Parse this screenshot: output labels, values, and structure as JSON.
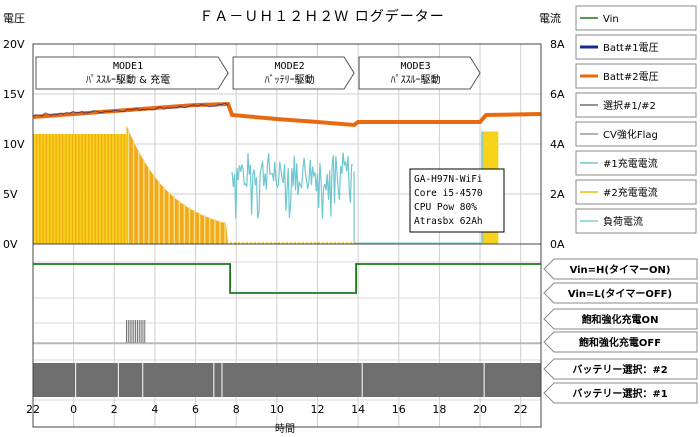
{
  "chart_data": {
    "type": "line",
    "title": "ＦＡ－ＵＨ１２Ｈ２Ｗ ログデーター",
    "ylabel_left": "電圧",
    "ylabel_right": "電流",
    "xlabel": "時間",
    "x_ticks": [
      "22",
      "0",
      "2",
      "4",
      "6",
      "8",
      "10",
      "12",
      "14",
      "16",
      "18",
      "20",
      "22"
    ],
    "y_left_ticks": [
      "20V",
      "15V",
      "10V",
      "5V",
      "0V"
    ],
    "y_right_ticks": [
      "8A",
      "6A",
      "4A",
      "2A",
      "0A"
    ],
    "ylim_left": [
      0,
      20
    ],
    "ylim_right": [
      0,
      8
    ],
    "x_range_hours": [
      22,
      47
    ],
    "modes": [
      {
        "label": "MODE1",
        "sub": "ﾊﾟｽｽﾙｰ駆動 & 充電",
        "x0": 22.0,
        "x1": 31.7
      },
      {
        "label": "MODE2",
        "sub": "ﾊﾞｯﾃﾘｰ駆動",
        "x0": 31.7,
        "x1": 37.9
      },
      {
        "label": "MODE3",
        "sub": "ﾊﾟｽｽﾙｰ駆動",
        "x0": 37.9,
        "x1": 44.1
      }
    ],
    "series": [
      {
        "name": "Vin",
        "color": "#1a7a1a"
      },
      {
        "name": "Batt#1電圧",
        "color": "#1a2a8c"
      },
      {
        "name": "Batt#2電圧",
        "color": "#e86a10"
      },
      {
        "name": "選択#1/#2",
        "color": "#707070"
      },
      {
        "name": "CV強化Flag",
        "color": "#9a9a9a"
      },
      {
        "name": "#1充電電流",
        "color": "#6fc8d0"
      },
      {
        "name": "#2充電電流",
        "color": "#f2c000"
      },
      {
        "name": "負荷電流",
        "color": "#7ad6c8"
      }
    ],
    "batt2_voltage": {
      "x": [
        22.0,
        24,
        26,
        28,
        30,
        31.6,
        31.8,
        34,
        36,
        37.8,
        38.0,
        40,
        42,
        44.0,
        44.3,
        47
      ],
      "y": [
        12.7,
        13.0,
        13.3,
        13.6,
        13.9,
        14.0,
        12.9,
        12.5,
        12.2,
        11.9,
        12.2,
        12.2,
        12.2,
        12.2,
        12.9,
        13.0
      ]
    },
    "digital_rows": [
      {
        "label_high": "Vin=H(タイマーON)",
        "label_low": "Vin=L(タイマーOFF)",
        "color": "#1a7a1a",
        "steps": [
          [
            22.0,
            1
          ],
          [
            31.7,
            0
          ],
          [
            37.9,
            1
          ],
          [
            47,
            1
          ]
        ]
      },
      {
        "label_high": "飽和強化充電ON",
        "label_low": "飽和強化充電OFF",
        "color": "#707070",
        "pulses": [
          [
            26.6,
            27.5
          ]
        ]
      },
      {
        "label_high": "バッテリー選択：#2",
        "label_low": "バッテリー選択：#1",
        "color": "#6e6e6e",
        "band": [
          22.0,
          47
        ]
      }
    ],
    "annotation": [
      "GA-H97N-WiFi",
      "Core i5-4570",
      "CPU Pow 80%",
      "Atrasbx 62Ah"
    ],
    "grid": true,
    "legend_position": "right"
  }
}
